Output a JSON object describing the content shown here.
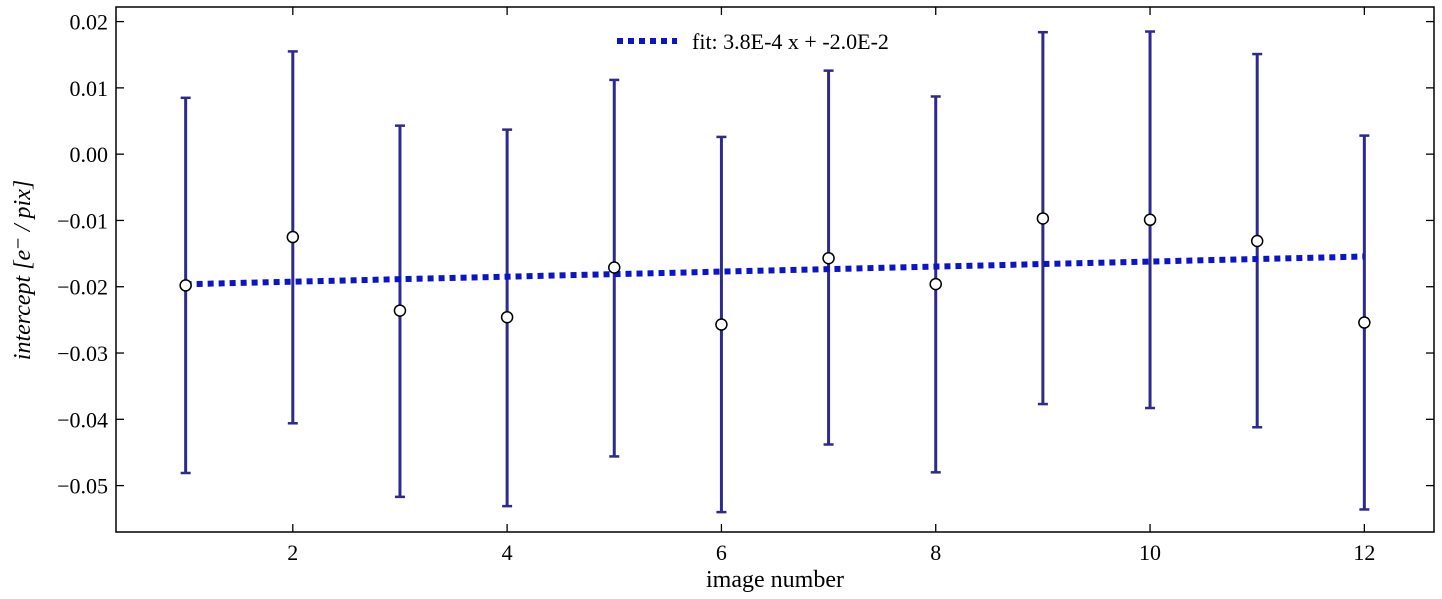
{
  "chart_data": {
    "type": "scatter",
    "title": "",
    "xlabel": "image number",
    "ylabel": "intercept [e⁻ / pix]",
    "xlim": [
      0.35,
      12.65
    ],
    "ylim": [
      -0.057,
      0.0222
    ],
    "x_ticks": [
      2,
      4,
      6,
      8,
      10,
      12
    ],
    "y_ticks": [
      -0.05,
      -0.04,
      -0.03,
      -0.02,
      -0.01,
      0.0,
      0.01,
      0.02
    ],
    "y_tick_labels": [
      "−0.05",
      "−0.04",
      "−0.03",
      "−0.02",
      "−0.01",
      "0.00",
      "0.01",
      "0.02"
    ],
    "grid": false,
    "legend_position": "top-center",
    "series": [
      {
        "kind": "errorbar",
        "color": "#2e2a8c",
        "marker_fill": "#ffffff",
        "marker_edge": "#000000",
        "x": [
          1,
          2,
          3,
          4,
          5,
          6,
          7,
          8,
          9,
          10,
          11,
          12
        ],
        "y": [
          -0.0198,
          -0.0125,
          -0.0236,
          -0.0246,
          -0.0171,
          -0.0257,
          -0.0157,
          -0.0196,
          -0.0097,
          -0.0099,
          -0.0131,
          -0.0254
        ],
        "yerr_low": [
          -0.0481,
          -0.0406,
          -0.0517,
          -0.0531,
          -0.0456,
          -0.054,
          -0.0438,
          -0.048,
          -0.0377,
          -0.0383,
          -0.0412,
          -0.0536
        ],
        "yerr_high": [
          0.0085,
          0.0155,
          0.0043,
          0.0037,
          0.0112,
          0.0026,
          0.0126,
          0.0087,
          0.0184,
          0.0185,
          0.0151,
          0.0028
        ]
      },
      {
        "kind": "line",
        "name": "fit: 3.8E-4 x + -2.0E-2",
        "style": "dotted",
        "color": "#0a14c8",
        "slope": 0.00038,
        "intercept": -0.02,
        "x": [
          1,
          12
        ]
      }
    ]
  }
}
